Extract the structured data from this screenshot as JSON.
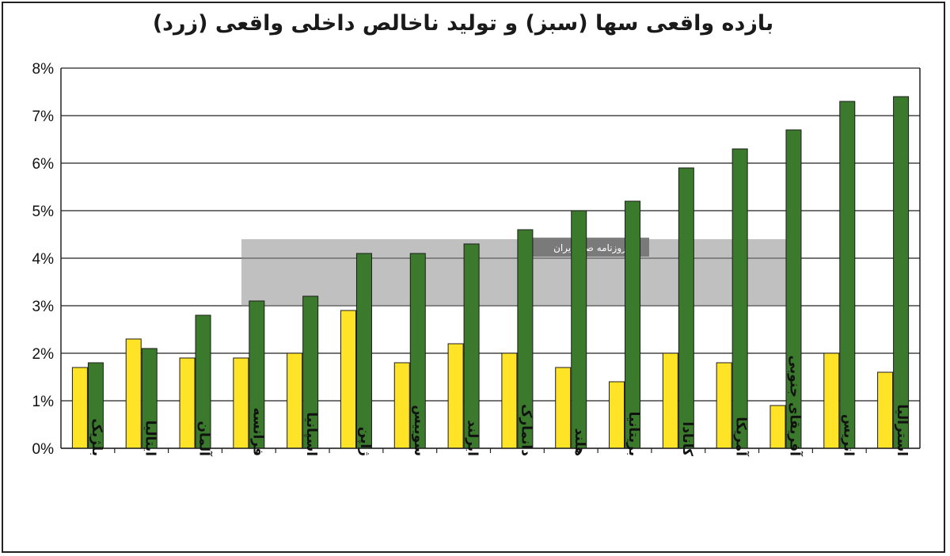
{
  "chart_data": {
    "type": "bar",
    "title": "بازده واقعی سها (سبز) و تولید ناخالص داخلی واقعی (زرد)",
    "categories": [
      "بلژیک",
      "ایتالیا",
      "آلمان",
      "فرانسه",
      "اسپانیا",
      "ژاپن",
      "سوییس",
      "ایرلند",
      "دانمارک",
      "هلند",
      "بریتانیا",
      "کانادا",
      "آمریکا",
      "آفریقای جنوبی",
      "اتریس",
      "استرالیا"
    ],
    "series": [
      {
        "color": "#ffe327",
        "values": [
          1.7,
          2.3,
          1.9,
          1.9,
          2.0,
          2.9,
          1.8,
          2.2,
          2.0,
          1.7,
          1.4,
          2.0,
          1.8,
          0.9,
          2.0,
          1.6
        ]
      },
      {
        "color": "#3b7a2d",
        "values": [
          1.8,
          2.1,
          2.8,
          3.1,
          3.2,
          4.1,
          4.1,
          4.3,
          4.6,
          5.0,
          5.2,
          5.9,
          6.3,
          6.7,
          7.3,
          7.4
        ]
      }
    ],
    "ylim": [
      0,
      8
    ],
    "yticks": [
      "0%",
      "1%",
      "2%",
      "3%",
      "4%",
      "5%",
      "6%",
      "7%",
      "8%"
    ],
    "grid": true,
    "xlabel": "",
    "ylabel": ""
  },
  "watermark": {
    "label": "روزنامه صبح ایران"
  }
}
